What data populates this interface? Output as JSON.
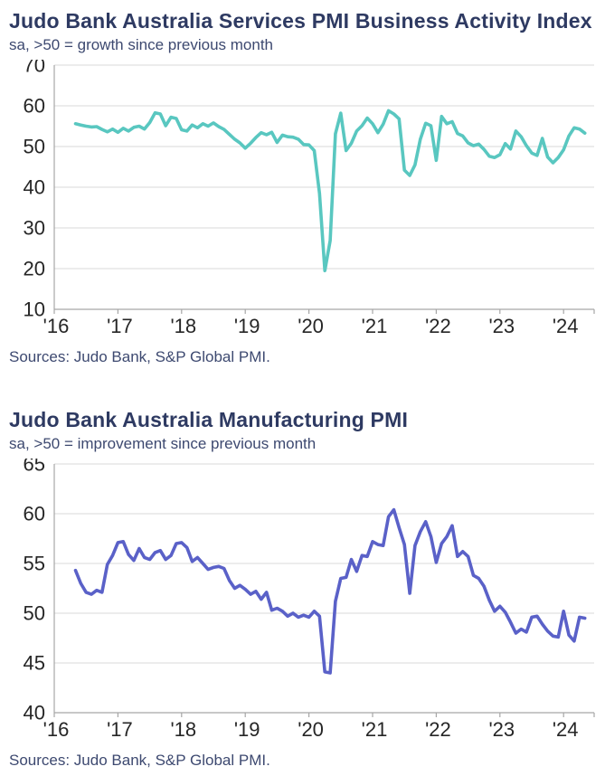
{
  "theme": {
    "background": "#ffffff",
    "title_color": "#2e3a62",
    "subtitle_color": "#3d4970",
    "tick_label_color": "#262626",
    "axis_color": "#a6a6a6",
    "gridline_color": "#d9d9d9"
  },
  "chart_data": [
    {
      "type": "line",
      "title": "Judo Bank Australia Services PMI Business Activity Index",
      "subtitle": "sa, >50 = growth since previous month",
      "source": "Sources: Judo Bank, S&P Global PMI.",
      "line_color": "#59c7c0",
      "ylim": [
        10,
        70
      ],
      "y_ticks": [
        70,
        60,
        50,
        40,
        30,
        20,
        10
      ],
      "x_tick_labels": [
        "'16",
        "'17",
        "'18",
        "'19",
        "'20",
        "'21",
        "'22",
        "'23",
        "'24"
      ],
      "x_start": "2016-05",
      "x_end": "2024-05",
      "frequency": "monthly",
      "grid": "horizontal",
      "legend": "none",
      "values": [
        55.6,
        55.3,
        55.0,
        54.8,
        54.9,
        54.2,
        53.6,
        54.3,
        53.5,
        54.5,
        53.8,
        54.7,
        55.0,
        54.3,
        55.9,
        58.3,
        58.0,
        55.1,
        57.2,
        56.9,
        54.1,
        53.8,
        55.3,
        54.6,
        55.6,
        55.0,
        55.8,
        54.9,
        54.2,
        53.0,
        51.8,
        50.9,
        49.6,
        50.8,
        52.2,
        53.4,
        52.9,
        53.5,
        51.0,
        52.8,
        52.4,
        52.3,
        51.8,
        50.5,
        50.4,
        49.0,
        38.5,
        19.5,
        26.9,
        53.1,
        58.2,
        49.0,
        50.8,
        53.8,
        55.1,
        57.0,
        55.6,
        53.4,
        55.5,
        58.8,
        58.0,
        56.8,
        44.2,
        42.9,
        45.5,
        51.8,
        55.7,
        55.1,
        46.6,
        57.4,
        55.6,
        56.1,
        53.2,
        52.6,
        50.9,
        50.2,
        50.6,
        49.3,
        47.6,
        47.3,
        48.0,
        50.7,
        49.4,
        53.8,
        52.4,
        50.2,
        48.4,
        47.8,
        52.0,
        47.4,
        46.0,
        47.3,
        49.2,
        52.6,
        54.6,
        54.3,
        53.3
      ]
    },
    {
      "type": "line",
      "title": "Judo Bank Australia Manufacturing PMI",
      "subtitle": "sa, >50 = improvement since previous month",
      "source": "Sources: Judo Bank, S&P Global PMI.",
      "line_color": "#5a61c8",
      "ylim": [
        40,
        65
      ],
      "y_ticks": [
        65,
        60,
        55,
        50,
        45,
        40
      ],
      "x_tick_labels": [
        "'16",
        "'17",
        "'18",
        "'19",
        "'20",
        "'21",
        "'22",
        "'23",
        "'24"
      ],
      "x_start": "2016-05",
      "x_end": "2024-05",
      "frequency": "monthly",
      "grid": "horizontal",
      "legend": "none",
      "values": [
        54.3,
        53.0,
        52.1,
        51.9,
        52.3,
        52.1,
        54.9,
        55.8,
        57.1,
        57.2,
        55.9,
        55.3,
        56.5,
        55.6,
        55.4,
        56.1,
        56.3,
        55.4,
        55.8,
        57.0,
        57.1,
        56.6,
        55.2,
        55.6,
        55.0,
        54.4,
        54.6,
        54.7,
        54.5,
        53.3,
        52.5,
        52.8,
        52.4,
        51.9,
        52.2,
        51.4,
        52.1,
        50.3,
        50.5,
        50.2,
        49.7,
        50.0,
        49.6,
        49.8,
        49.6,
        50.2,
        49.7,
        44.1,
        44.0,
        51.2,
        53.5,
        53.6,
        55.4,
        54.2,
        55.8,
        55.7,
        57.2,
        56.9,
        56.8,
        59.7,
        60.4,
        58.6,
        56.9,
        52.0,
        56.8,
        58.2,
        59.2,
        57.7,
        55.1,
        57.0,
        57.7,
        58.8,
        55.7,
        56.2,
        55.7,
        53.8,
        53.5,
        52.7,
        51.3,
        50.2,
        50.7,
        50.1,
        49.1,
        48.0,
        48.4,
        48.1,
        49.6,
        49.7,
        48.9,
        48.2,
        47.7,
        47.6,
        50.2,
        47.8,
        47.2,
        49.6,
        49.5
      ]
    }
  ]
}
